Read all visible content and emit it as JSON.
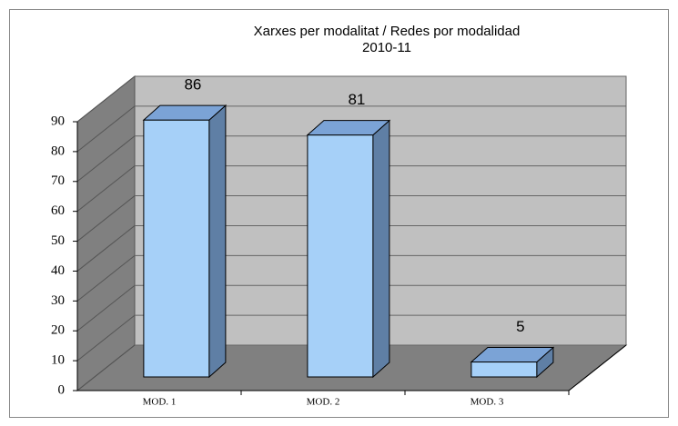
{
  "chart_data": {
    "type": "bar",
    "title": "Xarxes per modalitat / Redes por modalidad",
    "subtitle": "2010-11",
    "categories": [
      "MOD. 1",
      "MOD. 2",
      "MOD. 3"
    ],
    "values": [
      86,
      81,
      5
    ],
    "color": "#a6d0f8",
    "ylim": [
      0,
      90
    ],
    "yticks": [
      0,
      10,
      20,
      30,
      40,
      50,
      60,
      70,
      80,
      90
    ],
    "grid": true
  }
}
